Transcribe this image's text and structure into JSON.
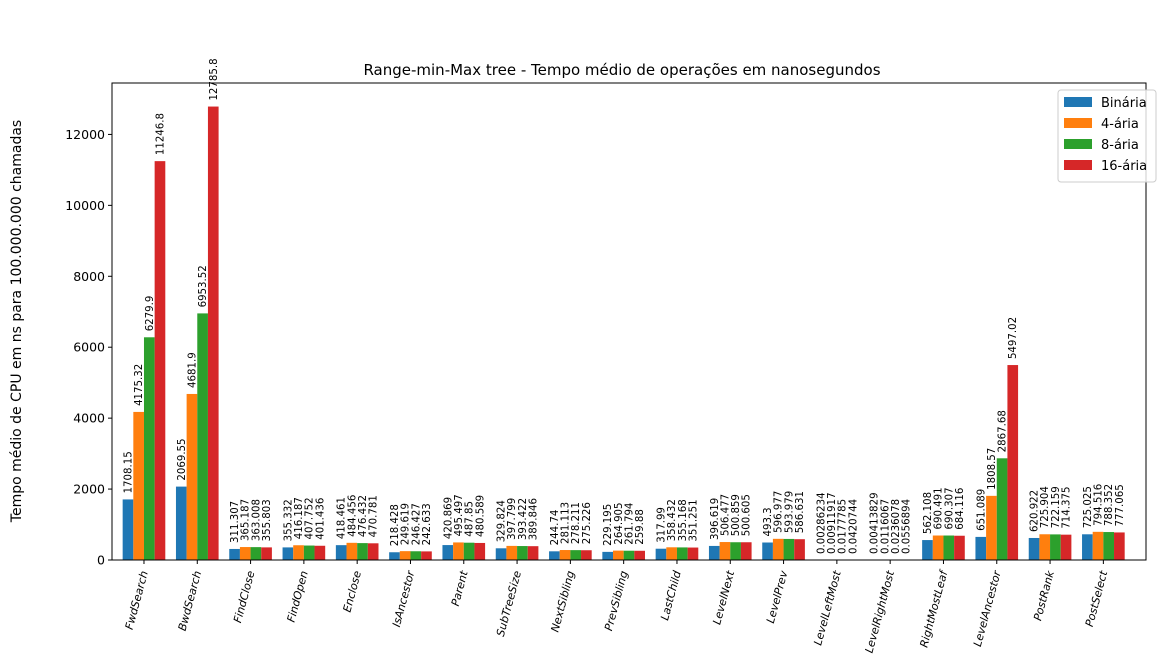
{
  "chart_data": {
    "type": "bar",
    "title": "Range-min-Max tree - Tempo médio de operações em nanosegundos",
    "xlabel": "",
    "ylabel": "Tempo médio de CPU em ns para 100.000.000 chamadas",
    "ylim": [
      0,
      13450
    ],
    "yticks": [
      0,
      2000,
      4000,
      6000,
      8000,
      10000,
      12000
    ],
    "legend_position": "top-right",
    "categories": [
      "FwdSearch",
      "BwdSearch",
      "FindClose",
      "FindOpen",
      "Enclose",
      "IsAncestor",
      "Parent",
      "SubTreeSize",
      "NextSibling",
      "PrevSibling",
      "LastChild",
      "LevelNext",
      "LevelPrev",
      "LevelLeftMost",
      "LevelRightMost",
      "RightMostLeaf",
      "LevelAncestor",
      "PostRank",
      "PostSelect"
    ],
    "series": [
      {
        "name": "Binária",
        "color": "#1f77b4",
        "values": [
          1708.15,
          2069.55,
          311.307,
          355.332,
          418.461,
          218.428,
          420.869,
          329.824,
          244.74,
          229.195,
          317.99,
          396.619,
          493.3,
          0.00286234,
          0.00413829,
          562.108,
          651.089,
          620.922,
          725.025
        ],
        "labels": [
          "1708.15",
          "2069.55",
          "311.307",
          "355.332",
          "418.461",
          "218.428",
          "420.869",
          "329.824",
          "244.74",
          "229.195",
          "317.99",
          "396.619",
          "493.3",
          "0.00286234",
          "0.00413829",
          "562.108",
          "651.089",
          "620.922",
          "725.025"
        ]
      },
      {
        "name": "4-ária",
        "color": "#ff7f0e",
        "values": [
          4175.32,
          4681.9,
          365.187,
          416.187,
          484.456,
          249.619,
          495.497,
          397.799,
          281.113,
          264.905,
          358.432,
          506.477,
          596.977,
          0.00911917,
          0.0116067,
          690.491,
          1808.57,
          725.904,
          794.516
        ],
        "labels": [
          "4175.32",
          "4681.9",
          "365.187",
          "416.187",
          "484.456",
          "249.619",
          "495.497",
          "397.799",
          "281.113",
          "264.905",
          "358.432",
          "506.477",
          "596.977",
          "0.00911917",
          "0.0116067",
          "690.491",
          "1808.57",
          "725.904",
          "794.516"
        ]
      },
      {
        "name": "8-ária",
        "color": "#2ca02c",
        "values": [
          6279.9,
          6953.52,
          363.008,
          407.752,
          476.432,
          246.427,
          487.85,
          393.422,
          278.211,
          261.794,
          355.168,
          500.859,
          593.979,
          0.0177785,
          0.0236078,
          690.307,
          2867.68,
          722.159,
          788.352
        ],
        "labels": [
          "6279.9",
          "6953.52",
          "363.008",
          "407.752",
          "476.432",
          "246.427",
          "487.85",
          "393.422",
          "278.211",
          "261.794",
          "355.168",
          "500.859",
          "593.979",
          "0.0177785",
          "0.0236078",
          "690.307",
          "2867.68",
          "722.159",
          "788.352"
        ]
      },
      {
        "name": "16-ária",
        "color": "#d62728",
        "values": [
          11246.8,
          12785.8,
          355.803,
          401.436,
          470.781,
          242.633,
          480.589,
          389.846,
          275.226,
          259.88,
          351.251,
          500.605,
          586.631,
          0.0420744,
          0.0556894,
          684.116,
          5497.02,
          714.375,
          777.065
        ],
        "labels": [
          "11246.8",
          "12785.8",
          "355.803",
          "401.436",
          "470.781",
          "242.633",
          "480.589",
          "389.846",
          "275.226",
          "259.88",
          "351.251",
          "500.605",
          "586.631",
          "0.0420744",
          "0.0556894",
          "684.116",
          "5497.02",
          "714.375",
          "777.065"
        ]
      }
    ]
  }
}
